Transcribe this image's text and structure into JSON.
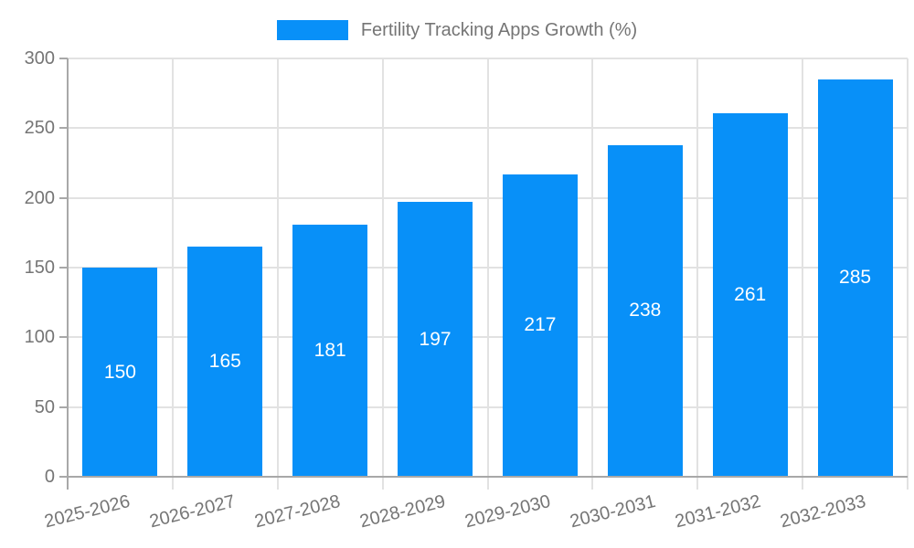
{
  "chart_data": {
    "type": "bar",
    "title": "Fertility Tracking Apps Growth (%)",
    "legend": {
      "label": "Fertility Tracking Apps Growth (%)",
      "position": "top-center"
    },
    "categories": [
      "2025-2026",
      "2026-2027",
      "2027-2028",
      "2028-2029",
      "2029-2030",
      "2030-2031",
      "2031-2032",
      "2032-2033"
    ],
    "series": [
      {
        "name": "Fertility Tracking Apps Growth (%)",
        "values": [
          150,
          165,
          181,
          197,
          217,
          238,
          261,
          285
        ]
      }
    ],
    "value_labels": "inside-center",
    "xlabel": "",
    "ylabel": "",
    "ylim": [
      0,
      300
    ],
    "yticks": [
      0,
      50,
      100,
      150,
      200,
      250,
      300
    ],
    "x_tick_rotation_deg": -14,
    "grid": "horizontal-and-vertical",
    "colors": {
      "bar": "#0890F8",
      "bar_label": "#FFFFFF",
      "axis_text": "#757575",
      "axis_line": "#A8A8A8",
      "gridline": "#E2E2E2",
      "background": "#FFFFFF"
    }
  }
}
